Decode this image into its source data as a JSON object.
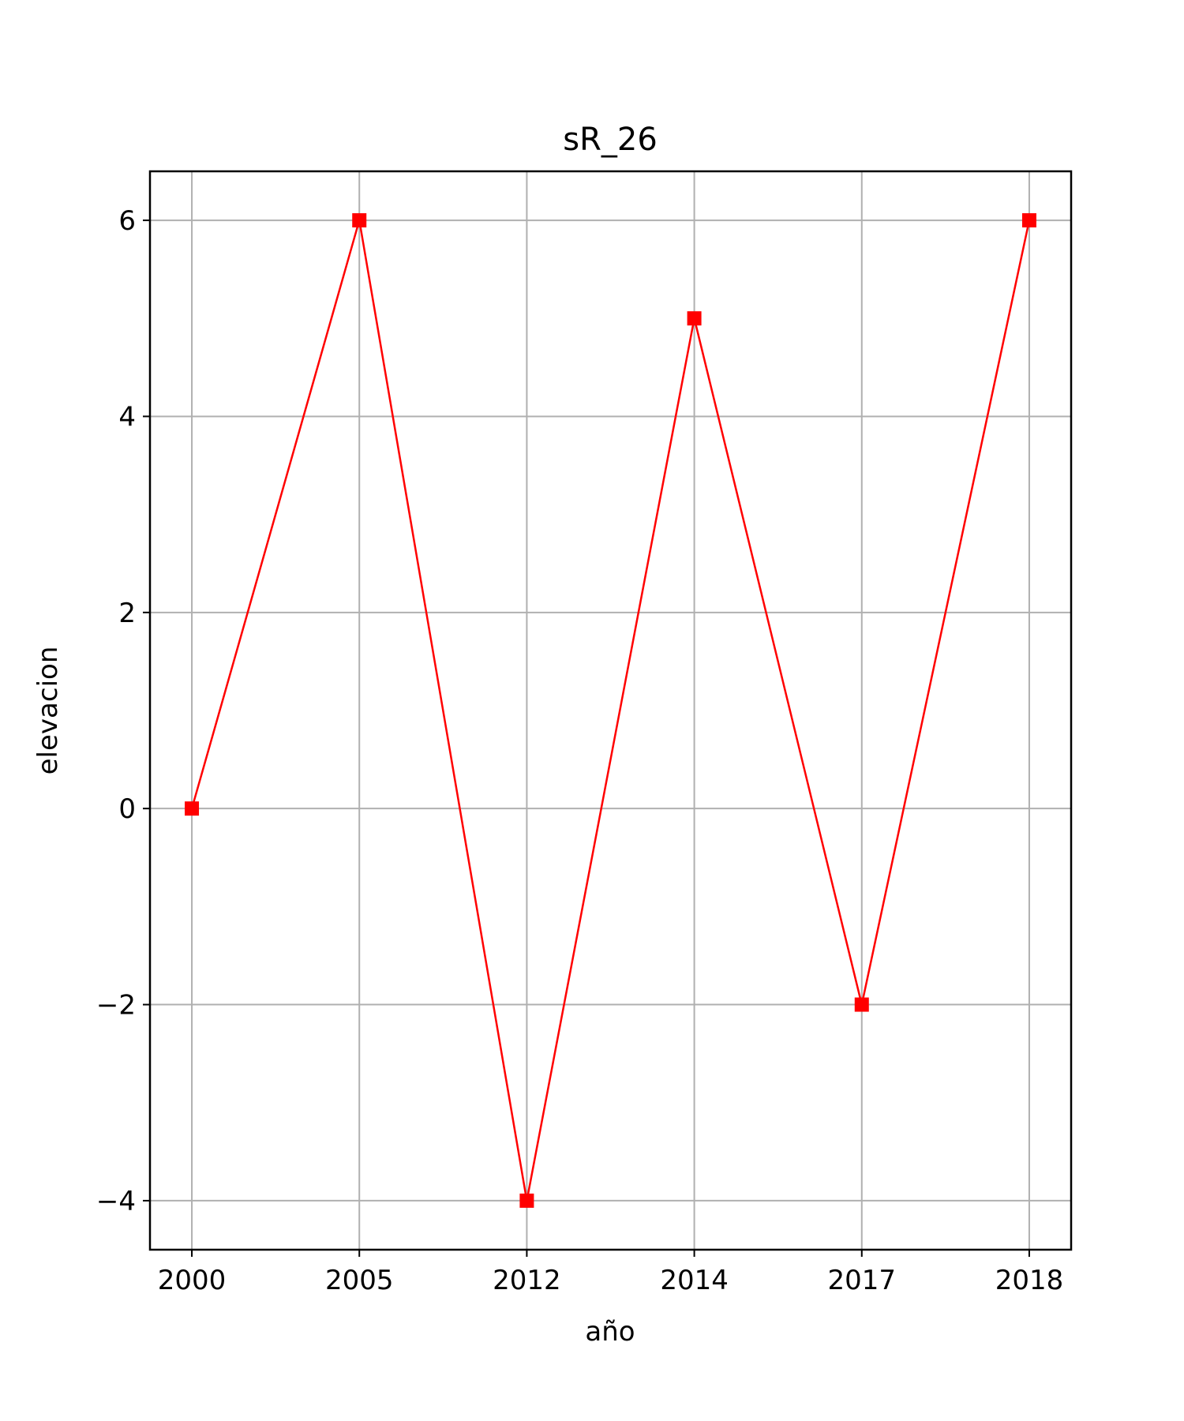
{
  "chart_data": {
    "type": "line",
    "title": "sR_26",
    "xlabel": "año",
    "ylabel": "elevacion",
    "categories": [
      "2000",
      "2005",
      "2012",
      "2014",
      "2017",
      "2018"
    ],
    "series": [
      {
        "values": [
          0,
          6,
          -4,
          5,
          -2,
          6
        ],
        "color": "#ff0000",
        "marker": "square"
      }
    ],
    "ylim": [
      -4.5,
      6.5
    ],
    "yticks": [
      -4,
      -2,
      0,
      2,
      4,
      6
    ],
    "ytick_labels": [
      "−4",
      "−2",
      "0",
      "2",
      "4",
      "6"
    ],
    "grid": true,
    "legend": "none"
  }
}
